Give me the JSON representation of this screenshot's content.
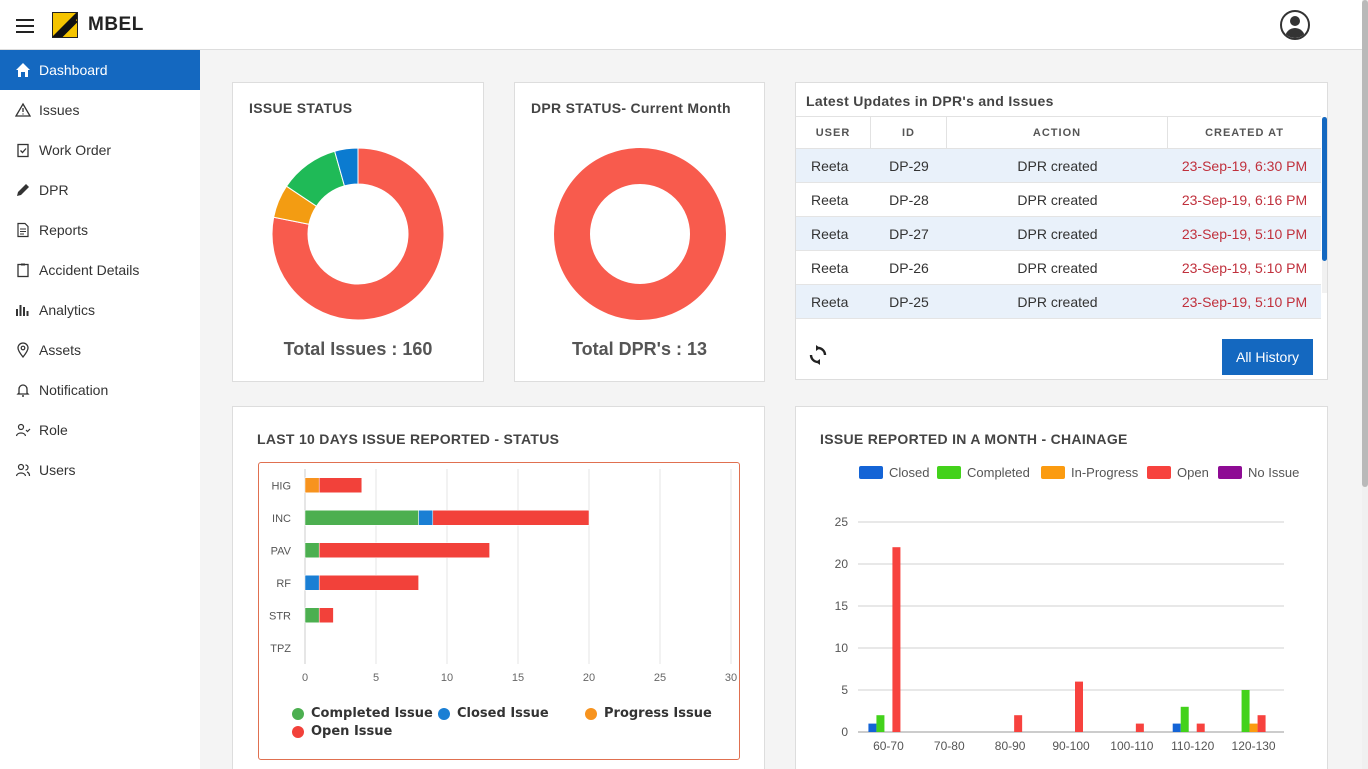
{
  "header": {
    "brand": "MBEL"
  },
  "sidebar": {
    "items": [
      {
        "label": "Dashboard",
        "icon": "home-icon"
      },
      {
        "label": "Issues",
        "icon": "warning-icon"
      },
      {
        "label": "Work Order",
        "icon": "clipboard-check-icon"
      },
      {
        "label": "DPR",
        "icon": "pencil-icon"
      },
      {
        "label": "Reports",
        "icon": "document-icon"
      },
      {
        "label": "Accident Details",
        "icon": "clipboard-icon"
      },
      {
        "label": "Analytics",
        "icon": "bar-chart-icon"
      },
      {
        "label": "Assets",
        "icon": "location-pin-icon"
      },
      {
        "label": "Notification",
        "icon": "bell-icon"
      },
      {
        "label": "Role",
        "icon": "user-check-icon"
      },
      {
        "label": "Users",
        "icon": "users-icon"
      }
    ]
  },
  "issue_status": {
    "title": "ISSUE STATUS",
    "total": "Total Issues : 160"
  },
  "dpr_status": {
    "title": "DPR STATUS- Current Month",
    "total": "Total DPR's : 13"
  },
  "updates": {
    "title": "Latest Updates in DPR's and Issues",
    "columns": [
      "USER",
      "ID",
      "ACTION",
      "CREATED AT"
    ],
    "rows": [
      {
        "user": "Reeta",
        "id": "DP-29",
        "action": "DPR created",
        "created": "23-Sep-19, 6:30 PM"
      },
      {
        "user": "Reeta",
        "id": "DP-28",
        "action": "DPR created",
        "created": "23-Sep-19, 6:16 PM"
      },
      {
        "user": "Reeta",
        "id": "DP-27",
        "action": "DPR created",
        "created": "23-Sep-19, 5:10 PM"
      },
      {
        "user": "Reeta",
        "id": "DP-26",
        "action": "DPR created",
        "created": "23-Sep-19, 5:10 PM"
      },
      {
        "user": "Reeta",
        "id": "DP-25",
        "action": "DPR created",
        "created": "23-Sep-19, 5:10 PM"
      }
    ],
    "all_history": "All History"
  },
  "last10": {
    "title": "LAST 10 DAYS ISSUE REPORTED - STATUS",
    "legend": [
      "Completed Issue",
      "Closed Issue",
      "Progress Issue",
      "Open Issue"
    ]
  },
  "chainage": {
    "title": "ISSUE REPORTED IN A MONTH - CHAINAGE",
    "legend": [
      "Closed",
      "Completed",
      "In-Progress",
      "Open",
      "No Issue"
    ]
  },
  "chart_data": [
    {
      "type": "pie",
      "labels": [
        "Open",
        "Progress",
        "Completed",
        "Closed"
      ],
      "values": [
        125,
        10,
        18,
        7
      ],
      "colors": [
        "#f85b4d",
        "#f39c12",
        "#1fba57",
        "#0b7bd0"
      ]
    },
    {
      "type": "pie",
      "labels": [
        "DPR"
      ],
      "values": [
        13
      ],
      "colors": [
        "#f85b4d"
      ]
    },
    {
      "type": "bar",
      "orientation": "horizontal",
      "stacked": true,
      "categories": [
        "HIG",
        "INC",
        "PAV",
        "RF",
        "STR",
        "TPZ"
      ],
      "series": [
        {
          "name": "Completed Issue",
          "color": "#4caf50",
          "values": [
            0,
            8,
            1,
            0,
            1,
            0
          ]
        },
        {
          "name": "Closed Issue",
          "color": "#1a7fd4",
          "values": [
            0,
            1,
            0,
            1,
            0,
            0
          ]
        },
        {
          "name": "Progress Issue",
          "color": "#f7931e",
          "values": [
            1,
            0,
            0,
            0,
            0,
            0
          ]
        },
        {
          "name": "Open Issue",
          "color": "#f2413a",
          "values": [
            3,
            11,
            12,
            7,
            1,
            0
          ]
        }
      ],
      "xlim": [
        0,
        30
      ],
      "xticks": [
        0,
        5,
        10,
        15,
        20,
        25,
        30
      ],
      "grid": true
    },
    {
      "type": "bar",
      "categories": [
        "60-70",
        "70-80",
        "80-90",
        "90-100",
        "100-110",
        "110-120",
        "120-130"
      ],
      "series": [
        {
          "name": "Closed",
          "color": "#1464d6",
          "values": [
            1,
            0,
            0,
            0,
            0,
            1,
            0
          ]
        },
        {
          "name": "Completed",
          "color": "#43d21b",
          "values": [
            2,
            0,
            0,
            0,
            0,
            3,
            5
          ]
        },
        {
          "name": "In-Progress",
          "color": "#fb9b10",
          "values": [
            0,
            0,
            0,
            0,
            0,
            0,
            1
          ]
        },
        {
          "name": "Open",
          "color": "#f7423e",
          "values": [
            22,
            0,
            2,
            6,
            1,
            1,
            2
          ]
        },
        {
          "name": "No Issue",
          "color": "#8e0b94",
          "values": [
            0,
            0,
            0,
            0,
            0,
            0,
            0
          ]
        }
      ],
      "ylim": [
        0,
        25
      ],
      "yticks": [
        0,
        5,
        10,
        15,
        20,
        25
      ],
      "grid": true
    }
  ]
}
